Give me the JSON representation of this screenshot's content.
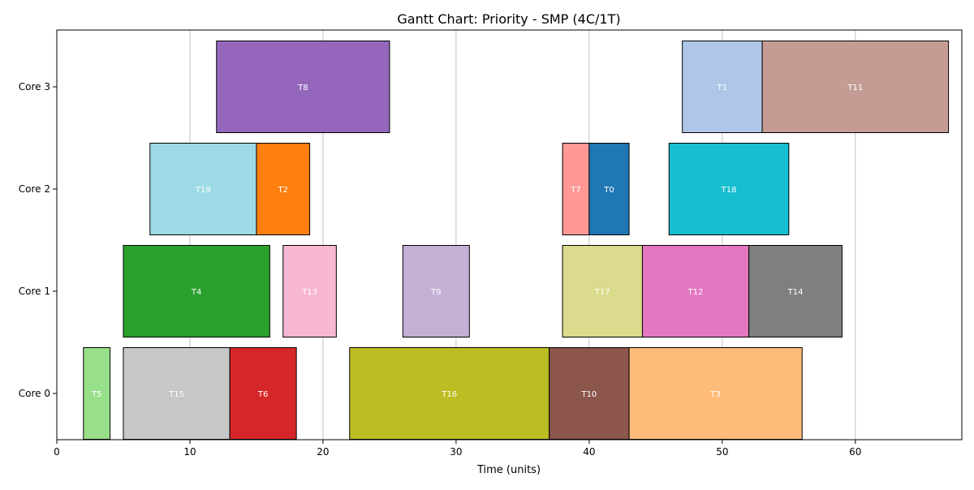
{
  "chart_data": {
    "type": "gantt",
    "title": "Gantt Chart: Priority - SMP (4C/1T)",
    "xlabel": "Time (units)",
    "ylabel": "",
    "xlim": [
      0,
      68
    ],
    "xticks": [
      0,
      10,
      20,
      30,
      40,
      50,
      60
    ],
    "grid": "vertical",
    "categories": [
      "Core 0",
      "Core 1",
      "Core 2",
      "Core 3"
    ],
    "tasks": [
      {
        "label": "T5",
        "core": 0,
        "start": 2,
        "end": 4,
        "color": "#98df8a"
      },
      {
        "label": "T15",
        "core": 0,
        "start": 5,
        "end": 13,
        "color": "#c7c7c7"
      },
      {
        "label": "T6",
        "core": 0,
        "start": 13,
        "end": 18,
        "color": "#d62728"
      },
      {
        "label": "T16",
        "core": 0,
        "start": 22,
        "end": 37,
        "color": "#bcbd22"
      },
      {
        "label": "T10",
        "core": 0,
        "start": 37,
        "end": 43,
        "color": "#8c564b"
      },
      {
        "label": "T3",
        "core": 0,
        "start": 43,
        "end": 56,
        "color": "#ffbb78"
      },
      {
        "label": "T4",
        "core": 1,
        "start": 5,
        "end": 16,
        "color": "#2ca02c"
      },
      {
        "label": "T13",
        "core": 1,
        "start": 17,
        "end": 21,
        "color": "#f7b6d2"
      },
      {
        "label": "T9",
        "core": 1,
        "start": 26,
        "end": 31,
        "color": "#c5b0d5"
      },
      {
        "label": "T17",
        "core": 1,
        "start": 38,
        "end": 44,
        "color": "#dbdb8d"
      },
      {
        "label": "T12",
        "core": 1,
        "start": 44,
        "end": 52,
        "color": "#e377c2"
      },
      {
        "label": "T14",
        "core": 1,
        "start": 52,
        "end": 59,
        "color": "#7f7f7f"
      },
      {
        "label": "T19",
        "core": 2,
        "start": 7,
        "end": 15,
        "color": "#9edae5"
      },
      {
        "label": "T2",
        "core": 2,
        "start": 15,
        "end": 19,
        "color": "#ff7f0e"
      },
      {
        "label": "T7",
        "core": 2,
        "start": 38,
        "end": 40,
        "color": "#ff9896"
      },
      {
        "label": "T0",
        "core": 2,
        "start": 40,
        "end": 43,
        "color": "#1f77b4"
      },
      {
        "label": "T18",
        "core": 2,
        "start": 46,
        "end": 55,
        "color": "#17becf"
      },
      {
        "label": "T8",
        "core": 3,
        "start": 12,
        "end": 25,
        "color": "#9467bd"
      },
      {
        "label": "T1",
        "core": 3,
        "start": 47,
        "end": 53,
        "color": "#aec7e8"
      },
      {
        "label": "T11",
        "core": 3,
        "start": 53,
        "end": 67,
        "color": "#c49c94"
      }
    ]
  }
}
